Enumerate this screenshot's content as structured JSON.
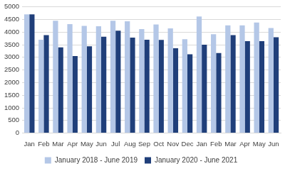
{
  "chart_data": {
    "type": "bar",
    "categories": [
      "Jan",
      "Feb",
      "Mar",
      "Apr",
      "May",
      "Jun",
      "Jul",
      "Aug",
      "Sep",
      "Oct",
      "Nov",
      "Dec",
      "Jan",
      "Feb",
      "Mar",
      "Apr",
      "May",
      "Jun"
    ],
    "series": [
      {
        "name": "January 2018 - June 2019",
        "color": "#b4c7e7",
        "values": [
          4700,
          3700,
          4450,
          4320,
          4250,
          4230,
          4450,
          4430,
          4120,
          4300,
          4150,
          3720,
          4620,
          3920,
          4270,
          4270,
          4380,
          4160
        ]
      },
      {
        "name": "January 2020 - June 2021",
        "color": "#203f7a",
        "values": [
          4700,
          3880,
          3400,
          3050,
          3440,
          3820,
          4060,
          3780,
          3700,
          3690,
          3360,
          3120,
          3500,
          3170,
          3880,
          3640,
          3640,
          3800
        ]
      }
    ],
    "ylim": [
      0,
      5000
    ],
    "yticks": [
      0,
      500,
      1000,
      1500,
      2000,
      2500,
      3000,
      3500,
      4000,
      4500,
      5000
    ],
    "grid": true,
    "legend": "bottom"
  }
}
